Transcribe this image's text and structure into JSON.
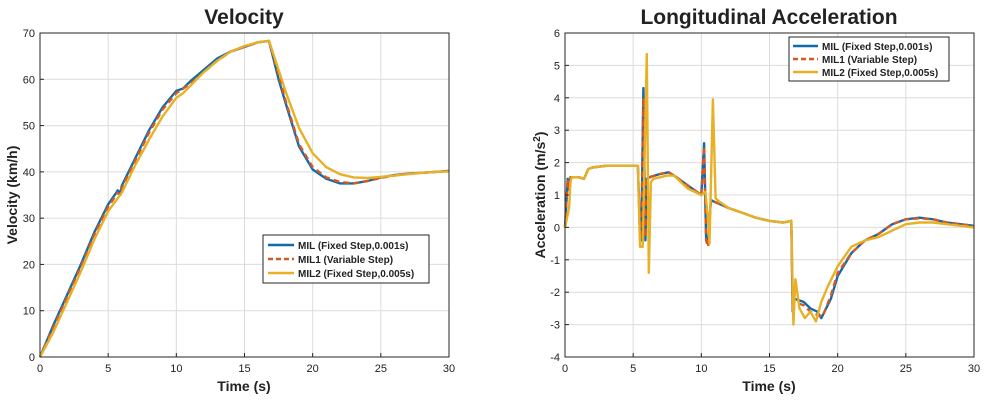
{
  "colors": {
    "series1": "#0f6bb0",
    "series2": "#d35a22",
    "series3": "#e8b024"
  },
  "chart_data": [
    {
      "type": "line",
      "title": "Velocity",
      "xlabel": "Time (s)",
      "ylabel": "Velocity (km/h)",
      "xlim": [
        0,
        30
      ],
      "ylim": [
        0,
        70
      ],
      "xticks": [
        "0",
        "5",
        "10",
        "15",
        "20",
        "25",
        "30"
      ],
      "yticks": [
        "0",
        "10",
        "20",
        "30",
        "40",
        "50",
        "60",
        "70"
      ],
      "grid": true,
      "legend_position": "center-right",
      "series": [
        {
          "name": "MIL (Fixed Step,0.001s)",
          "style": "solid",
          "x": [
            0,
            1,
            2,
            3,
            4,
            5,
            5.6,
            5.7,
            5.9,
            6,
            7,
            8,
            9,
            10,
            10.5,
            11,
            12,
            13,
            14,
            15,
            16,
            16.8,
            17.5,
            18,
            19,
            20,
            21,
            22,
            23,
            24,
            25,
            26,
            27,
            28,
            29,
            30
          ],
          "y": [
            0,
            7,
            13.5,
            20,
            27,
            33,
            35.5,
            36,
            35.5,
            37,
            43,
            49,
            54,
            57.5,
            58,
            59.5,
            62,
            64.5,
            66,
            67,
            68,
            68.3,
            60,
            55,
            45.5,
            40.5,
            38.5,
            37.5,
            37.5,
            38,
            38.8,
            39.3,
            39.6,
            39.8,
            40,
            40.2
          ]
        },
        {
          "name": "MIL1 (Variable Step)",
          "style": "dashed",
          "x": [
            0,
            1,
            2,
            3,
            4,
            5,
            5.6,
            5.7,
            5.9,
            6,
            7,
            8,
            9,
            10,
            10.5,
            11,
            12,
            13,
            14,
            15,
            16,
            16.8,
            17.5,
            18,
            19,
            20,
            21,
            22,
            23,
            24,
            25,
            26,
            27,
            28,
            29,
            30
          ],
          "y": [
            0,
            6.5,
            13,
            19.5,
            26.5,
            32.5,
            35,
            35.5,
            35,
            36.5,
            42.5,
            48.5,
            53.5,
            57,
            58,
            59,
            61.5,
            64,
            66,
            67,
            68,
            68.3,
            61,
            55.5,
            46,
            41,
            38.8,
            37.8,
            37.5,
            38,
            38.7,
            39.2,
            39.6,
            39.8,
            40,
            40.2
          ]
        },
        {
          "name": "MIL2 (Fixed Step,0.005s)",
          "style": "solid",
          "x": [
            0,
            1,
            2,
            3,
            4,
            5,
            6,
            7,
            8,
            9,
            10,
            10.5,
            11,
            12,
            13,
            14,
            15,
            16,
            16.8,
            17.5,
            18,
            19,
            20,
            21,
            22,
            23,
            24,
            25,
            26,
            27,
            28,
            29,
            30
          ],
          "y": [
            0,
            5.5,
            12,
            18.5,
            25.5,
            31.5,
            35.5,
            41.5,
            47,
            52,
            56,
            57,
            58.5,
            61.5,
            64,
            66,
            67.2,
            68,
            68.3,
            62,
            57.5,
            49.5,
            44,
            41,
            39.5,
            38.8,
            38.7,
            38.9,
            39.2,
            39.5,
            39.8,
            40,
            40.1
          ]
        }
      ]
    },
    {
      "type": "line",
      "title": "Longitudinal Acceleration",
      "xlabel": "Time (s)",
      "ylabel": "Acceleration (m/s",
      "ylabel_superscript": "2",
      "ylabel_suffix": ")",
      "xlim": [
        0,
        30
      ],
      "ylim": [
        -4,
        6
      ],
      "xticks": [
        "0",
        "5",
        "10",
        "15",
        "20",
        "25",
        "30"
      ],
      "yticks": [
        "-4",
        "-3",
        "-2",
        "-1",
        "0",
        "1",
        "2",
        "3",
        "4",
        "5",
        "6"
      ],
      "grid": true,
      "legend_position": "top-right",
      "series": [
        {
          "name": "MIL (Fixed Step,0.001s)",
          "style": "solid",
          "x": [
            0,
            0.2,
            0.3,
            0.4,
            1,
            1.4,
            1.7,
            2,
            3,
            4,
            5,
            5.35,
            5.5,
            5.6,
            5.75,
            5.9,
            6,
            6.2,
            7,
            7.6,
            8,
            9,
            10,
            10.2,
            10.35,
            10.5,
            10.7,
            10.9,
            11.2,
            12,
            13,
            14,
            15,
            16,
            16.6,
            16.7,
            16.8,
            17.5,
            18,
            18.5,
            18.8,
            19.5,
            20,
            21,
            22,
            23,
            24,
            25,
            26,
            27,
            28,
            29,
            30
          ],
          "y": [
            0,
            1.5,
            1.2,
            1.55,
            1.55,
            1.5,
            1.8,
            1.85,
            1.9,
            1.9,
            1.9,
            1.9,
            -0.2,
            -0.4,
            4.3,
            -0.4,
            1.5,
            1.55,
            1.65,
            1.7,
            1.6,
            1.3,
            1,
            2.6,
            -0.3,
            -0.5,
            0.85,
            0.8,
            0.75,
            0.6,
            0.45,
            0.3,
            0.2,
            0.15,
            0.2,
            -2.6,
            -2.2,
            -2.3,
            -2.5,
            -2.6,
            -2.8,
            -2.2,
            -1.5,
            -0.8,
            -0.4,
            -0.2,
            0.1,
            0.25,
            0.3,
            0.25,
            0.15,
            0.1,
            0.05
          ]
        },
        {
          "name": "MIL1 (Variable Step)",
          "style": "dashed",
          "x": [
            0,
            0.2,
            0.3,
            0.4,
            1,
            1.4,
            1.7,
            2,
            3,
            4,
            5,
            5.35,
            5.5,
            5.6,
            5.75,
            5.9,
            6,
            6.2,
            7,
            7.6,
            8,
            9,
            10,
            10.2,
            10.35,
            10.5,
            10.7,
            10.9,
            11.2,
            12,
            13,
            14,
            15,
            16,
            16.6,
            16.7,
            16.8,
            17.5,
            18,
            18.5,
            18.9,
            19.5,
            20,
            21,
            22,
            23,
            24,
            25,
            26,
            27,
            28,
            29,
            30
          ],
          "y": [
            0,
            1.5,
            1.15,
            1.55,
            1.55,
            1.5,
            1.8,
            1.85,
            1.9,
            1.9,
            1.9,
            1.9,
            -0.3,
            -0.3,
            4,
            -0.3,
            1.5,
            1.55,
            1.65,
            1.7,
            1.6,
            1.3,
            1,
            2.5,
            -0.4,
            -0.6,
            0.85,
            0.8,
            0.75,
            0.6,
            0.45,
            0.3,
            0.2,
            0.15,
            0.2,
            -2.5,
            -2.3,
            -2.4,
            -2.6,
            -2.7,
            -2.75,
            -2.1,
            -1.4,
            -0.8,
            -0.4,
            -0.2,
            0.1,
            0.25,
            0.28,
            0.25,
            0.15,
            0.1,
            0.05
          ]
        },
        {
          "name": "MIL2 (Fixed Step,0.005s)",
          "style": "solid",
          "x": [
            0,
            0.3,
            0.4,
            0.5,
            1,
            1.4,
            1.7,
            2,
            3,
            4,
            5,
            5.35,
            5.5,
            5.7,
            6,
            6.15,
            6.3,
            6.5,
            7,
            7.5,
            8,
            9,
            10,
            10.3,
            10.5,
            10.6,
            10.85,
            11.05,
            11.3,
            12,
            13,
            14,
            15,
            16,
            16.6,
            16.75,
            16.9,
            17.2,
            17.6,
            18,
            18.4,
            18.8,
            19.3,
            20,
            21,
            22,
            23,
            24,
            25,
            26,
            27,
            28,
            29,
            30
          ],
          "y": [
            0,
            0.6,
            1.4,
            1.55,
            1.55,
            1.5,
            1.8,
            1.85,
            1.9,
            1.9,
            1.9,
            1.9,
            -0.6,
            -0.6,
            5.35,
            -1.4,
            1.4,
            1.5,
            1.55,
            1.6,
            1.6,
            1.2,
            1,
            1.1,
            0.2,
            -0.5,
            3.95,
            0.9,
            0.8,
            0.6,
            0.45,
            0.3,
            0.2,
            0.15,
            0.2,
            -3,
            -1.6,
            -2.5,
            -2.8,
            -2.6,
            -2.9,
            -2.3,
            -1.8,
            -1.2,
            -0.6,
            -0.4,
            -0.3,
            -0.1,
            0.1,
            0.15,
            0.15,
            0.1,
            0.05,
            0
          ]
        }
      ]
    }
  ]
}
